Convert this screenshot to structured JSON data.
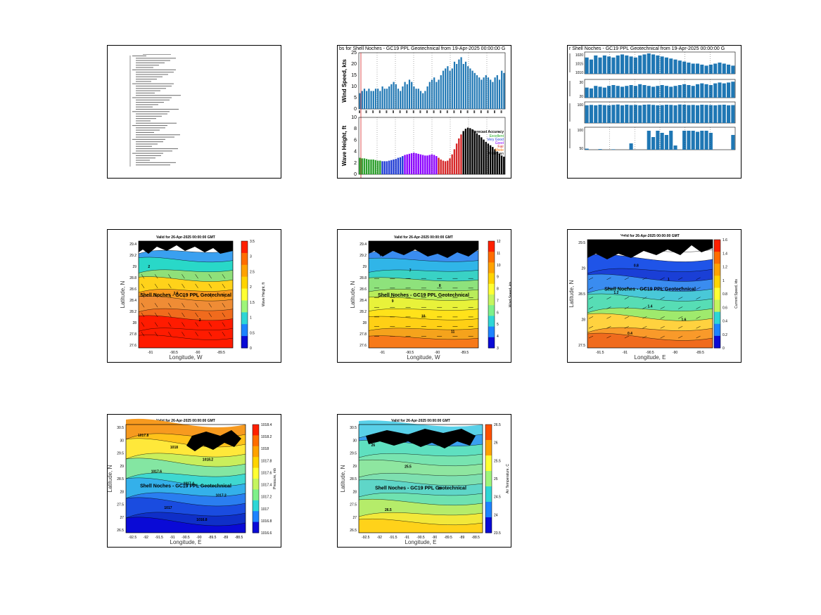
{
  "chart_data": [
    {
      "panel": "text-summary",
      "type": "table",
      "note_lines": 48
    },
    {
      "panel": "wind-wave-forecast",
      "type": "bar",
      "title": "bs for Shell Noches - GC19 PPL Geotechnical from 19-Apr-2025 00:00:00 G",
      "subplots": [
        {
          "ylabel": "Wind Speed, kts",
          "ylim": [
            0,
            25
          ],
          "yticks": [
            0,
            5,
            10,
            15,
            20,
            25
          ],
          "values": [
            7,
            8,
            9,
            8,
            9,
            8,
            8,
            9,
            9,
            8,
            10,
            9,
            9,
            10,
            11,
            12,
            11,
            9,
            8,
            10,
            12,
            11,
            13,
            12,
            10,
            9,
            9,
            8,
            7,
            8,
            10,
            12,
            13,
            14,
            12,
            13,
            15,
            17,
            18,
            19,
            17,
            18,
            21,
            20,
            22,
            23,
            20,
            21,
            19,
            18,
            17,
            16,
            15,
            14,
            13,
            14,
            15,
            14,
            13,
            12,
            14,
            15,
            13,
            17,
            16
          ]
        },
        {
          "ylabel": "Wave Height, ft",
          "ylim": [
            0,
            10
          ],
          "yticks": [
            0,
            2,
            4,
            6,
            8,
            10
          ],
          "values": [
            2.9,
            2.8,
            2.8,
            2.7,
            2.6,
            2.6,
            2.6,
            2.5,
            2.4,
            2.4,
            2.3,
            2.3,
            2.3,
            2.4,
            2.5,
            2.6,
            2.7,
            2.9,
            3.0,
            3.2,
            3.4,
            3.5,
            3.6,
            3.7,
            3.8,
            3.7,
            3.6,
            3.5,
            3.4,
            3.3,
            3.3,
            3.4,
            3.5,
            3.4,
            3.2,
            2.9,
            2.6,
            2.4,
            2.3,
            2.4,
            2.8,
            3.5,
            4.4,
            5.4,
            6.3,
            7.0,
            7.6,
            8.0,
            8.2,
            8.1,
            7.9,
            7.6,
            7.2,
            6.9,
            6.5,
            6.1,
            5.7,
            5.4,
            5.1,
            4.8,
            4.4,
            4.0,
            3.6,
            3.3,
            3.1
          ],
          "accuracy_breaks": [
            10,
            20,
            35,
            46
          ],
          "accuracy_colors": [
            "#2ca02c",
            "#1f3bd6",
            "#8b00ff",
            "#d62728",
            "#000000"
          ]
        }
      ],
      "legend": {
        "title": "Forecast Accuracy",
        "entries": [
          {
            "label": "Excellent",
            "color": "#22aa22"
          },
          {
            "label": "Very Good",
            "color": "#1f3bd6"
          },
          {
            "label": "Good",
            "color": "#8b00ff"
          },
          {
            "label": "Fair",
            "color": "#d62728"
          },
          {
            "label": "Mode",
            "color": "#ff7f0e"
          },
          {
            "label": "Unknown",
            "color": "#000000"
          }
        ]
      }
    },
    {
      "panel": "met-parameters",
      "type": "bar",
      "title": "r Shell Noches - GC19 PPL Geotechnical from 19-Apr-2025 00:00:00 G",
      "subplots": [
        {
          "yticks": [
            "1020",
            "1015",
            "1010"
          ],
          "values": [
            0.8,
            0.7,
            0.9,
            0.8,
            0.9,
            0.85,
            0.8,
            0.9,
            0.95,
            0.9,
            0.85,
            0.8,
            0.9,
            0.95,
            1,
            0.95,
            0.9,
            0.85,
            0.8,
            0.75,
            0.7,
            0.65,
            0.6,
            0.55,
            0.5,
            0.5,
            0.45,
            0.4,
            0.45,
            0.5,
            0.55,
            0.5,
            0.45,
            0.4
          ]
        },
        {
          "yticks": [
            "30",
            "20"
          ],
          "values": [
            0.6,
            0.55,
            0.7,
            0.65,
            0.6,
            0.7,
            0.75,
            0.7,
            0.65,
            0.7,
            0.75,
            0.7,
            0.8,
            0.75,
            0.7,
            0.65,
            0.7,
            0.75,
            0.7,
            0.65,
            0.7,
            0.75,
            0.8,
            0.75,
            0.7,
            0.8,
            0.85,
            0.8,
            0.75,
            0.85,
            0.9,
            0.85,
            0.9,
            0.95
          ]
        },
        {
          "yticks": [
            "100"
          ],
          "values": [
            0.9,
            0.92,
            0.9,
            0.93,
            0.91,
            0.9,
            0.92,
            0.94,
            0.9,
            0.93,
            0.91,
            0.92,
            0.9,
            0.93,
            0.94,
            0.92,
            0.9,
            0.91,
            0.93,
            0.92,
            0.9,
            0.94,
            0.93,
            0.91,
            0.92,
            0.9,
            0.93,
            0.92,
            0.91,
            0.9,
            0.92,
            0.93,
            0.9,
            0.91
          ]
        },
        {
          "yticks": [
            "100",
            "50"
          ],
          "values": [
            0.05,
            0,
            0,
            0.03,
            0,
            0,
            0.02,
            0,
            0,
            0,
            0.3,
            0,
            0,
            0,
            0.9,
            0.6,
            0.9,
            0.8,
            0.7,
            0.9,
            0.2,
            0,
            0.9,
            0.9,
            0.9,
            0.85,
            0.9,
            0.9,
            0.8,
            0,
            0,
            0,
            0,
            0.7
          ]
        }
      ]
    },
    {
      "panel": "wave-height-map",
      "type": "heatmap",
      "title": "Valid for 26-Apr-2025 00:00:00 GMT",
      "site_label": "Shell Noches - GC19 PPL Geotechnical",
      "xlabel": "Longitude, W",
      "ylabel": "Latitude, N",
      "xticks": [
        "-91",
        "-90.5",
        "-90",
        "-89.5"
      ],
      "yticks": [
        "29.4",
        "29.2",
        "29",
        "28.8",
        "28.6",
        "28.4",
        "28.2",
        "28",
        "27.8",
        "27.6"
      ],
      "colorbar_label": "Wave Height, ft",
      "colorbar_ticks": [
        "3.5",
        "3",
        "2.5",
        "2",
        "1.5",
        "1",
        "0.5",
        "0"
      ],
      "contour_labels": [
        "2",
        "2.5",
        "3"
      ]
    },
    {
      "panel": "wind-speed-map",
      "type": "heatmap",
      "title": "Valid for 26-Apr-2025 00:00:00 GMT",
      "site_label": "Shell Noches - GC19 PPL Geotechnical",
      "xlabel": "Longitude, W",
      "ylabel": "Latitude, N",
      "xticks": [
        "-91",
        "-90.5",
        "-90",
        "-89.5"
      ],
      "yticks": [
        "29.4",
        "29.2",
        "29",
        "28.8",
        "28.6",
        "28.4",
        "28.2",
        "28",
        "27.8",
        "27.6"
      ],
      "colorbar_label": "Wind Speed, kts",
      "colorbar_ticks": [
        "12",
        "11",
        "10",
        "9",
        "8",
        "7",
        "6",
        "5",
        "4",
        "3"
      ],
      "contour_labels": [
        "6",
        "7",
        "8",
        "9",
        "10",
        "11"
      ]
    },
    {
      "panel": "current-speed-map",
      "type": "heatmap",
      "title": "Valid for 26-Apr-2025 00:00:00 GMT",
      "site_label": "Shell Noches - GC19 PPL Geotechnical",
      "xlabel": "Longitude, E",
      "ylabel": "Latitude, N",
      "xticks": [
        "-91.5",
        "-91",
        "-90.5",
        "-90",
        "-89.5"
      ],
      "yticks": [
        "29.5",
        "29",
        "28.5",
        "28",
        "27.5"
      ],
      "colorbar_label": "Current Speed, kts",
      "colorbar_ticks": [
        "1.6",
        "1.4",
        "1.2",
        "1",
        "0.8",
        "0.6",
        "0.4",
        "0.2",
        "0"
      ],
      "contour_labels": [
        "0.6",
        "0.8",
        "1",
        "1.2",
        "1.4",
        "1.6",
        "0.4"
      ]
    },
    {
      "panel": "pressure-map",
      "type": "heatmap",
      "title": "Valid for 26-Apr-2025 00:00:00 GMT",
      "site_label": "Shell Noches - GC19 PPL Geotechnical",
      "xlabel": "Longitude, E",
      "ylabel": "Latitude, N",
      "xticks": [
        "-92.5",
        "-92",
        "-91.5",
        "-91",
        "-90.5",
        "-90",
        "-89.5",
        "-89",
        "-88.5"
      ],
      "yticks": [
        "30.5",
        "30",
        "29.5",
        "29",
        "28.5",
        "28",
        "27.5",
        "27",
        "26.5"
      ],
      "colorbar_label": "Pressure, mb",
      "colorbar_ticks": [
        "1018.4",
        "1018.2",
        "1018",
        "1017.8",
        "1017.6",
        "1017.4",
        "1017.2",
        "1017",
        "1016.8",
        "1016.6"
      ],
      "contour_labels": [
        "1017.8",
        "1018",
        "1018.2",
        "1017.6",
        "1017.4",
        "1017.2",
        "1017",
        "1016.8"
      ]
    },
    {
      "panel": "air-temperature-map",
      "type": "heatmap",
      "title": "Valid for 26-Apr-2025 00:00:00 GMT",
      "site_label": "Shell Noches - GC19 PPL Geotechnical",
      "xlabel": "Longitude, E",
      "ylabel": "Latitude, N",
      "xticks": [
        "-92.5",
        "-92",
        "-91.5",
        "-91",
        "-90.5",
        "-90",
        "-89.5",
        "-89",
        "-88.5"
      ],
      "yticks": [
        "30.5",
        "30",
        "29.5",
        "29",
        "28.5",
        "28",
        "27.5",
        "27",
        "26.5"
      ],
      "colorbar_label": "Air Temperature, C",
      "colorbar_ticks": [
        "26.5",
        "26",
        "25.5",
        "25",
        "24.5",
        "24",
        "23.5"
      ],
      "contour_labels": [
        "26",
        "25.5",
        "25",
        "26.5"
      ]
    }
  ]
}
